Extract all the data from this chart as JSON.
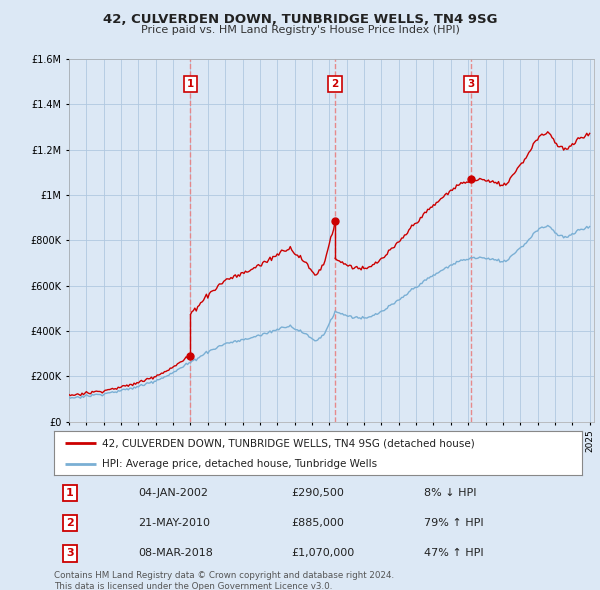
{
  "title": "42, CULVERDEN DOWN, TUNBRIDGE WELLS, TN4 9SG",
  "subtitle": "Price paid vs. HM Land Registry's House Price Index (HPI)",
  "ylim": [
    0,
    1600000
  ],
  "yticks": [
    0,
    200000,
    400000,
    600000,
    800000,
    1000000,
    1200000,
    1400000,
    1600000
  ],
  "sale_color": "#cc0000",
  "hpi_color": "#7aafd4",
  "vline_color": "#e88080",
  "dot_color": "#cc0000",
  "transaction_labels": [
    "1",
    "2",
    "3"
  ],
  "legend_sale": "42, CULVERDEN DOWN, TUNBRIDGE WELLS, TN4 9SG (detached house)",
  "legend_hpi": "HPI: Average price, detached house, Tunbridge Wells",
  "table_rows": [
    [
      "1",
      "04-JAN-2002",
      "£290,500",
      "8% ↓ HPI"
    ],
    [
      "2",
      "21-MAY-2010",
      "£885,000",
      "79% ↑ HPI"
    ],
    [
      "3",
      "08-MAR-2018",
      "£1,070,000",
      "47% ↑ HPI"
    ]
  ],
  "footer": "Contains HM Land Registry data © Crown copyright and database right 2024.\nThis data is licensed under the Open Government Licence v3.0.",
  "background_color": "#dce8f5",
  "plot_bg_color": "#dce8f5",
  "legend_bg": "#ffffff",
  "table_bg": "#ffffff"
}
